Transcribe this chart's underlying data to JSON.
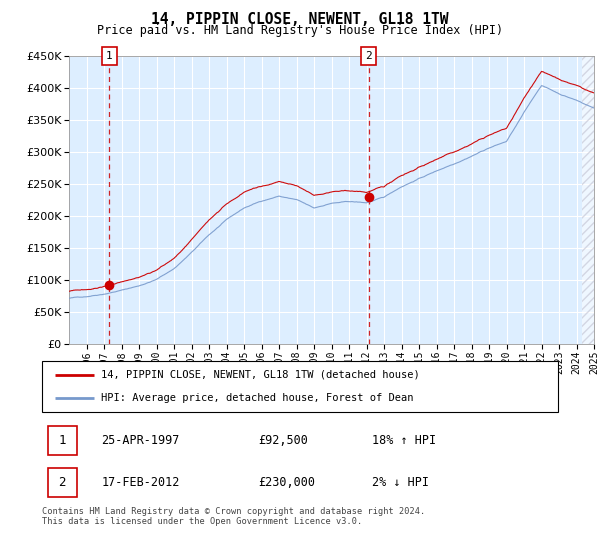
{
  "title": "14, PIPPIN CLOSE, NEWENT, GL18 1TW",
  "subtitle": "Price paid vs. HM Land Registry's House Price Index (HPI)",
  "ylim": [
    0,
    450000
  ],
  "yticks": [
    0,
    50000,
    100000,
    150000,
    200000,
    250000,
    300000,
    350000,
    400000,
    450000
  ],
  "year_start": 1995,
  "year_end": 2025,
  "sale1_year": 1997.31,
  "sale1_price": 92500,
  "sale2_year": 2012.12,
  "sale2_price": 230000,
  "red_line_color": "#cc0000",
  "blue_line_color": "#7799cc",
  "background_color": "#ddeeff",
  "grid_color": "#ffffff",
  "legend1": "14, PIPPIN CLOSE, NEWENT, GL18 1TW (detached house)",
  "legend2": "HPI: Average price, detached house, Forest of Dean",
  "table_row1_num": "1",
  "table_row1_date": "25-APR-1997",
  "table_row1_price": "£92,500",
  "table_row1_hpi": "18% ↑ HPI",
  "table_row2_num": "2",
  "table_row2_date": "17-FEB-2012",
  "table_row2_price": "£230,000",
  "table_row2_hpi": "2% ↓ HPI",
  "footnote": "Contains HM Land Registry data © Crown copyright and database right 2024.\nThis data is licensed under the Open Government Licence v3.0."
}
